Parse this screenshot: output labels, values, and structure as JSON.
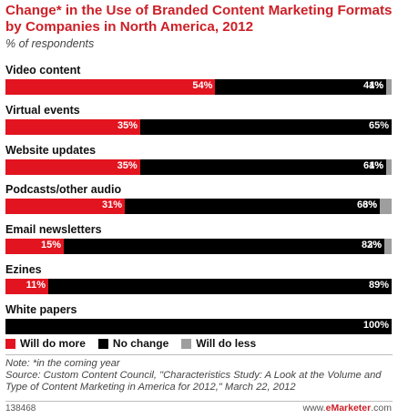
{
  "header": {
    "title": "Change* in the Use of Branded Content Marketing Formats by Companies in North America, 2012",
    "subtitle": "% of respondents"
  },
  "chart_data": {
    "type": "bar",
    "orientation": "horizontal",
    "stacked": true,
    "title": "Change* in the Use of Branded Content Marketing Formats by Companies in North America, 2012",
    "subtitle": "% of respondents",
    "categories": [
      "Video content",
      "Virtual events",
      "Website updates",
      "Podcasts/other audio",
      "Email newsletters",
      "Ezines",
      "White papers"
    ],
    "series": [
      {
        "name": "Will do more",
        "color": "#e2141f",
        "values": [
          54,
          35,
          35,
          31,
          15,
          11,
          0
        ]
      },
      {
        "name": "No change",
        "color": "#000000",
        "values": [
          44,
          65,
          64,
          66,
          83,
          89,
          100
        ]
      },
      {
        "name": "Will do less",
        "color": "#9e9e9e",
        "values": [
          1,
          0,
          1,
          3,
          2,
          0,
          0
        ]
      }
    ],
    "data_labels": [
      [
        "54%",
        "44%",
        "1%"
      ],
      [
        "35%",
        "65%",
        ""
      ],
      [
        "35%",
        "64%",
        "1%"
      ],
      [
        "31%",
        "66%",
        "3%"
      ],
      [
        "15%",
        "83%",
        "2%"
      ],
      [
        "11%",
        "89%",
        ""
      ],
      [
        "",
        "100%",
        ""
      ]
    ],
    "xlim": [
      0,
      100
    ],
    "grid": false,
    "legend_position": "bottom"
  },
  "legend": {
    "items": [
      {
        "label": "Will do more",
        "color": "#e2141f"
      },
      {
        "label": "No change",
        "color": "#000000"
      },
      {
        "label": "Will do less",
        "color": "#9e9e9e"
      }
    ]
  },
  "notes": {
    "note": "Note: *in the coming year",
    "source": "Source: Custom Content Council, \"Characteristics Study: A Look at the Volume and Type of Content Marketing in America for 2012,\" March 22, 2012"
  },
  "footer": {
    "id": "138468",
    "site_prefix": "www.",
    "site_brand": "eMarketer",
    "site_suffix": ".com"
  }
}
